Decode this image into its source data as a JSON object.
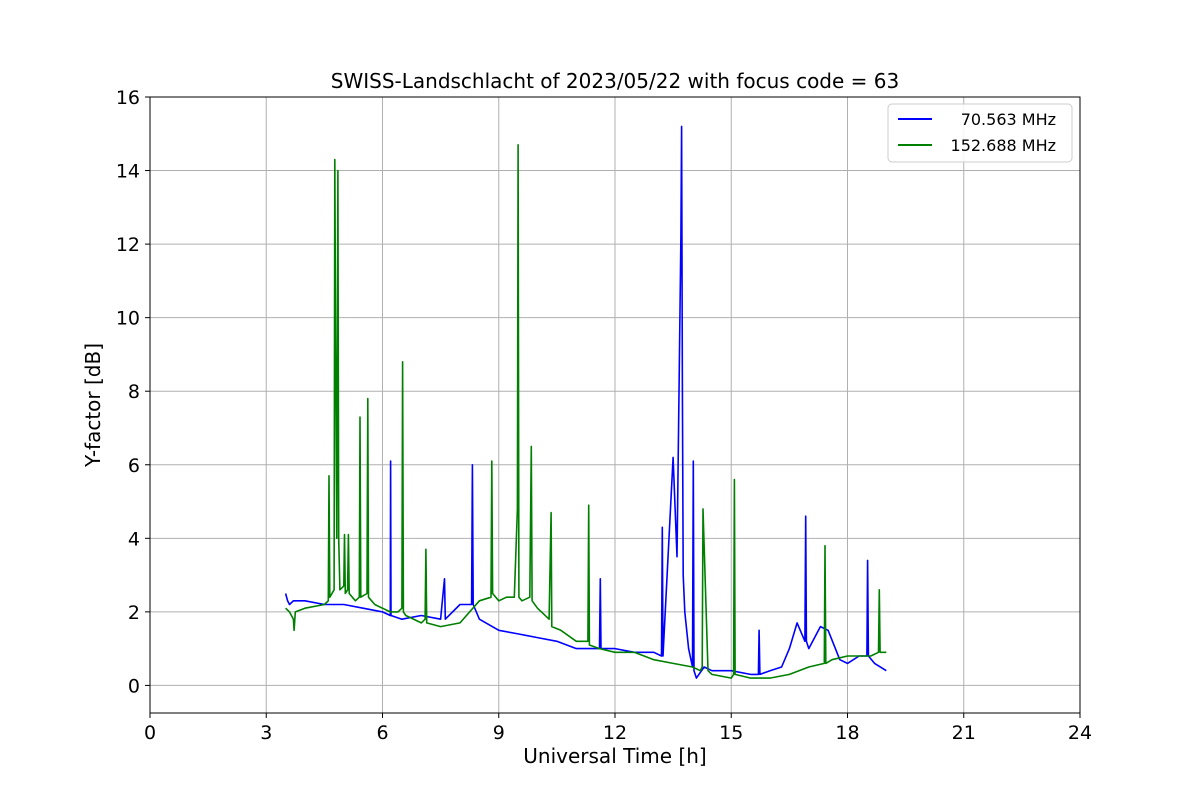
{
  "chart_data": {
    "type": "line",
    "title": "SWISS-Landschlacht of 2023/05/22 with focus code = 63",
    "xlabel": "Universal Time [h]",
    "ylabel": "Y-factor [dB]",
    "xlim": [
      0,
      24
    ],
    "ylim": [
      -0.75,
      16
    ],
    "xticks": [
      0,
      3,
      6,
      9,
      12,
      15,
      18,
      21,
      24
    ],
    "yticks": [
      0,
      2,
      4,
      6,
      8,
      10,
      12,
      14,
      16
    ],
    "grid": true,
    "legend_position": "top-right",
    "series": [
      {
        "name": "70.563 MHz",
        "color": "#0000ff",
        "x": [
          3.5,
          3.55,
          3.6,
          3.7,
          4.0,
          4.5,
          5.0,
          5.5,
          6.0,
          6.2,
          6.21,
          6.22,
          6.5,
          7.0,
          7.5,
          7.6,
          7.62,
          8.0,
          8.3,
          8.32,
          8.34,
          8.5,
          9.0,
          9.5,
          10.0,
          10.5,
          11.0,
          11.6,
          11.62,
          11.64,
          12.0,
          12.5,
          13.0,
          13.2,
          13.22,
          13.24,
          13.5,
          13.6,
          13.7,
          13.72,
          13.74,
          13.76,
          13.8,
          13.9,
          14.0,
          14.02,
          14.04,
          14.1,
          14.3,
          14.5,
          15.0,
          15.5,
          15.7,
          15.72,
          15.74,
          16.0,
          16.3,
          16.5,
          16.7,
          16.9,
          16.92,
          16.94,
          17.0,
          17.3,
          17.5,
          17.8,
          18.0,
          18.3,
          18.5,
          18.52,
          18.54,
          18.7,
          19.0
        ],
        "y": [
          2.5,
          2.3,
          2.2,
          2.3,
          2.3,
          2.2,
          2.2,
          2.1,
          2.0,
          1.9,
          6.1,
          1.9,
          1.8,
          1.9,
          1.8,
          2.9,
          1.8,
          2.2,
          2.2,
          6.0,
          2.2,
          1.8,
          1.5,
          1.4,
          1.3,
          1.2,
          1.0,
          1.0,
          2.9,
          1.0,
          1.0,
          0.9,
          0.9,
          0.8,
          4.3,
          0.8,
          6.2,
          3.5,
          12.2,
          15.2,
          8.0,
          3.0,
          2.0,
          1.0,
          0.5,
          6.1,
          0.4,
          0.2,
          0.5,
          0.4,
          0.4,
          0.3,
          0.3,
          1.5,
          0.3,
          0.4,
          0.5,
          1.0,
          1.7,
          1.2,
          4.6,
          1.2,
          1.0,
          1.6,
          1.5,
          0.7,
          0.6,
          0.8,
          0.8,
          3.4,
          0.8,
          0.6,
          0.4
        ]
      },
      {
        "name": "152.688 MHz",
        "color": "#008000",
        "x": [
          3.5,
          3.6,
          3.7,
          3.72,
          3.75,
          4.0,
          4.5,
          4.6,
          4.62,
          4.64,
          4.75,
          4.77,
          4.79,
          4.82,
          4.85,
          4.87,
          4.9,
          5.0,
          5.02,
          5.04,
          5.1,
          5.12,
          5.14,
          5.3,
          5.4,
          5.42,
          5.44,
          5.6,
          5.62,
          5.64,
          5.8,
          6.0,
          6.2,
          6.4,
          6.5,
          6.52,
          6.54,
          6.6,
          7.0,
          7.1,
          7.12,
          7.14,
          7.5,
          8.0,
          8.5,
          8.8,
          8.82,
          8.84,
          9.0,
          9.2,
          9.4,
          9.48,
          9.5,
          9.52,
          9.6,
          9.8,
          9.84,
          9.86,
          10.0,
          10.3,
          10.35,
          10.37,
          10.6,
          11.0,
          11.3,
          11.32,
          11.34,
          11.6,
          12.0,
          12.5,
          13.0,
          13.5,
          14.0,
          14.2,
          14.25,
          14.27,
          14.4,
          14.5,
          15.0,
          15.06,
          15.08,
          15.1,
          15.5,
          16.0,
          16.5,
          17.0,
          17.4,
          17.42,
          17.44,
          17.6,
          18.0,
          18.4,
          18.6,
          18.8,
          18.82,
          18.84,
          19.0
        ],
        "y": [
          2.1,
          2.0,
          1.8,
          1.5,
          2.0,
          2.1,
          2.2,
          2.3,
          5.7,
          2.4,
          2.6,
          14.3,
          9.5,
          4.0,
          14.0,
          4.0,
          2.6,
          2.7,
          4.1,
          2.5,
          2.6,
          4.1,
          2.5,
          2.3,
          2.4,
          7.3,
          2.4,
          2.5,
          7.8,
          2.4,
          2.2,
          2.1,
          2.0,
          2.0,
          2.1,
          8.8,
          2.0,
          1.9,
          1.7,
          1.8,
          3.7,
          1.7,
          1.6,
          1.7,
          2.3,
          2.4,
          6.1,
          2.5,
          2.3,
          2.4,
          2.4,
          4.8,
          14.7,
          2.4,
          2.3,
          2.4,
          6.5,
          2.3,
          2.1,
          1.8,
          4.7,
          1.6,
          1.5,
          1.2,
          1.2,
          4.9,
          1.1,
          1.0,
          0.9,
          0.9,
          0.7,
          0.6,
          0.5,
          0.4,
          0.5,
          4.8,
          0.4,
          0.3,
          0.2,
          0.3,
          5.6,
          0.3,
          0.2,
          0.2,
          0.3,
          0.5,
          0.6,
          3.8,
          0.6,
          0.7,
          0.8,
          0.8,
          0.8,
          0.9,
          2.6,
          0.9,
          0.9
        ]
      }
    ]
  }
}
